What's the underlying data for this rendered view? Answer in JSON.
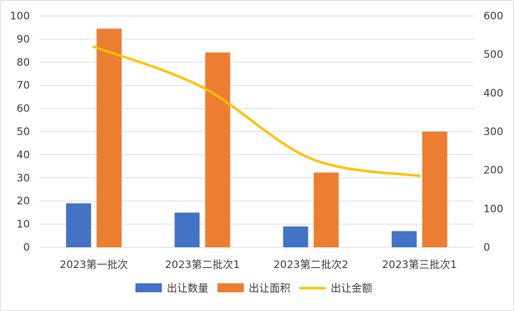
{
  "chart_data": {
    "type": "bar",
    "categories": [
      "2023第一批次",
      "2023第二批次1",
      "2023第二批次2",
      "2023第三批次1"
    ],
    "series": [
      {
        "name": "出让数量",
        "type": "bar",
        "axis": "left",
        "color": "#4472c4",
        "values": [
          19,
          15,
          9,
          7
        ]
      },
      {
        "name": "出让面积",
        "type": "bar",
        "axis": "left",
        "color": "#ed7d31",
        "values": [
          94.5,
          84.2,
          32.3,
          50
        ]
      },
      {
        "name": "出让金额",
        "type": "line",
        "smooth": true,
        "axis": "right",
        "color": "#ffc000",
        "values": [
          520,
          415,
          230,
          185
        ]
      }
    ],
    "ylim": [
      0,
      100
    ],
    "yticks": [
      "0",
      "10",
      "20",
      "30",
      "40",
      "50",
      "60",
      "70",
      "80",
      "90",
      "100"
    ],
    "y2lim": [
      0,
      600
    ],
    "y2ticks": [
      "0",
      "100",
      "200",
      "300",
      "400",
      "500",
      "600"
    ],
    "grid": true,
    "legend_position": "bottom"
  }
}
